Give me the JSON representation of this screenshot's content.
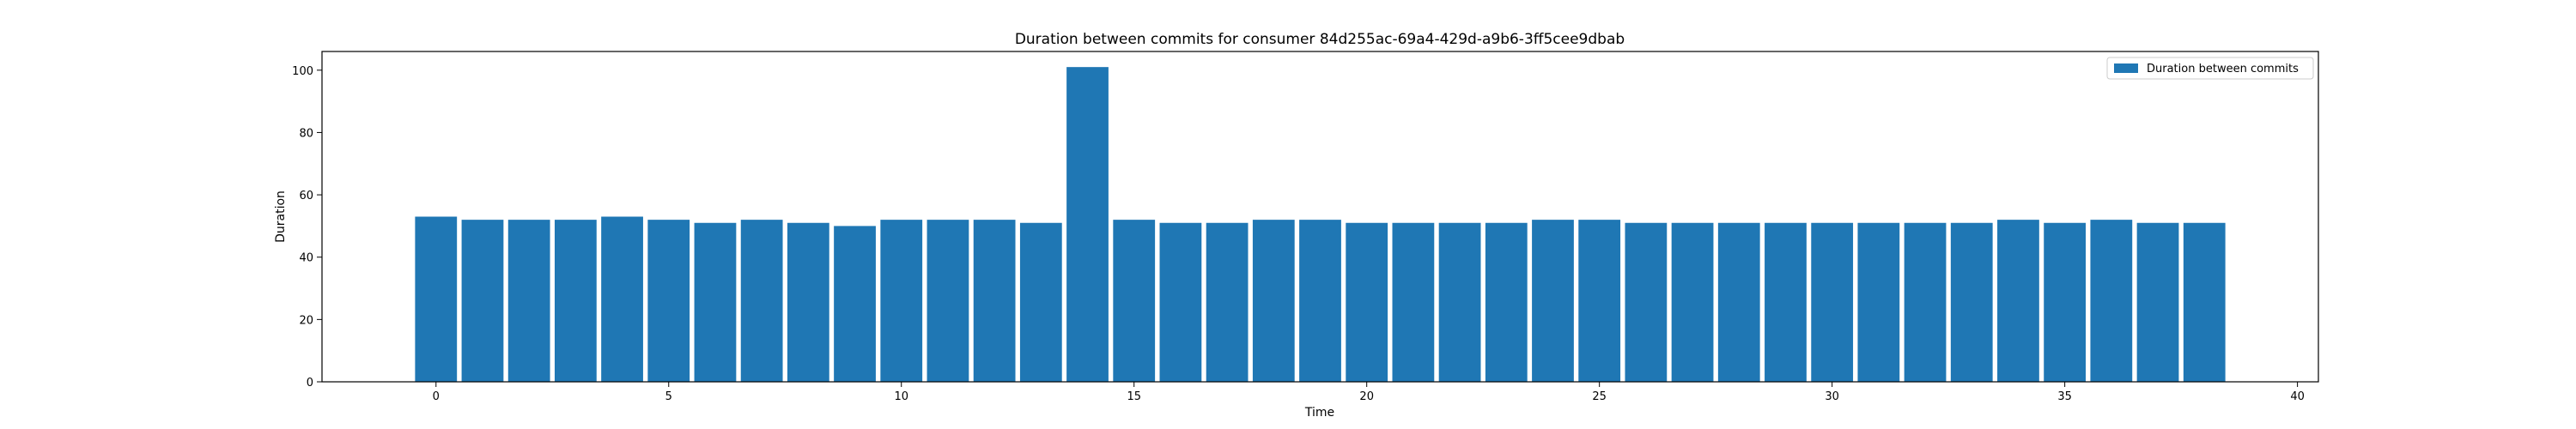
{
  "chart_data": {
    "type": "bar",
    "title": "Duration between commits for consumer 84d255ac-69a4-429d-a9b6-3ff5cee9dbab",
    "xlabel": "Time",
    "ylabel": "Duration",
    "xlim": [
      -2.45,
      40.45
    ],
    "ylim": [
      0,
      106
    ],
    "x_ticks": [
      0,
      5,
      10,
      15,
      20,
      25,
      30,
      35,
      40
    ],
    "y_ticks": [
      0,
      20,
      40,
      60,
      80,
      100
    ],
    "grid": false,
    "legend_position": "top-right",
    "color": "#1f77b4",
    "series": [
      {
        "name": "Duration between commits",
        "x": [
          0,
          1,
          2,
          3,
          4,
          5,
          6,
          7,
          8,
          9,
          10,
          11,
          12,
          13,
          14,
          15,
          16,
          17,
          18,
          19,
          20,
          21,
          22,
          23,
          24,
          25,
          26,
          27,
          28,
          29,
          30,
          31,
          32,
          33,
          34,
          35,
          36,
          37,
          38
        ],
        "values": [
          53,
          52,
          52,
          52,
          53,
          52,
          51,
          52,
          51,
          50,
          52,
          52,
          52,
          51,
          101,
          52,
          51,
          51,
          52,
          52,
          51,
          51,
          51,
          51,
          52,
          52,
          51,
          51,
          51,
          51,
          51,
          51,
          51,
          51,
          52,
          51,
          52,
          51,
          51
        ]
      }
    ]
  }
}
